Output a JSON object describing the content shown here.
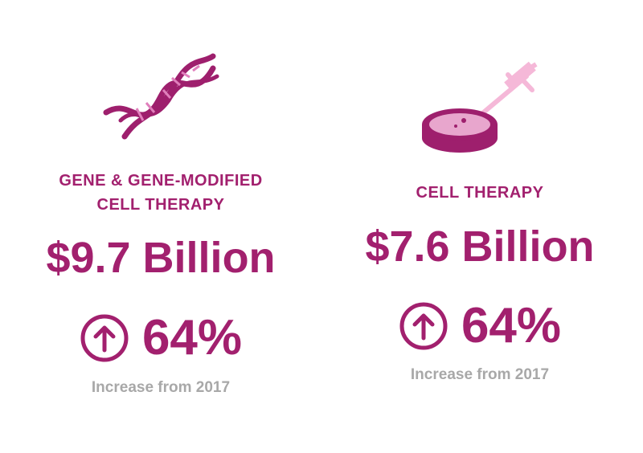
{
  "panels": [
    {
      "title_lines": [
        "GENE & GENE-MODIFIED",
        "CELL THERAPY"
      ],
      "amount": "$9.7 Billion",
      "change": "64%",
      "note": "Increase from 2017"
    },
    {
      "title_lines": [
        "CELL THERAPY"
      ],
      "amount": "$7.6 Billion",
      "change": "64%",
      "note": "Increase from 2017"
    }
  ]
}
